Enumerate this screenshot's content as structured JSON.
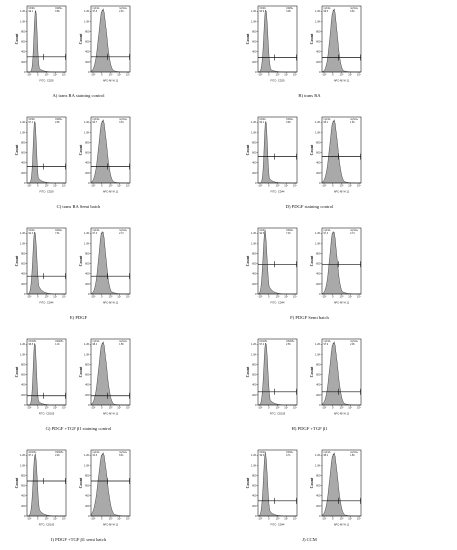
{
  "figure": {
    "panels": [
      {
        "id": "A",
        "caption": "A) trans RA staining control",
        "left": {
          "xlabel": "FITC- CD29",
          "gate_left": "CD29-",
          "val_left": "99.1",
          "gate_right": "CD29+",
          "val_right": "0.86"
        },
        "right": {
          "xlabel": "APC-MYH 11",
          "gate_left": "myh11-",
          "val_left": "97.8",
          "gate_right": "myh11+",
          "val_right": "2.20"
        }
      },
      {
        "id": "B",
        "caption": "B) trans RA",
        "left": {
          "xlabel": "FITC- CD29",
          "gate_left": "CD29-",
          "val_left": "96.9",
          "gate_right": "CD29+",
          "val_right": "3.08"
        },
        "right": {
          "xlabel": "APC-MYH 11",
          "gate_left": "myh11-",
          "val_left": "99.5",
          "gate_right": "myh11+",
          "val_right": "0.46"
        }
      },
      {
        "id": "C",
        "caption": "C) trans RA Semi batch",
        "left": {
          "xlabel": "FITC- CD29",
          "gate_left": "CD29-",
          "val_left": "97.1",
          "gate_right": "CD29+",
          "val_right": "2.86"
        },
        "right": {
          "xlabel": "APC-MYH 11",
          "gate_left": "myh11-",
          "val_left": "96.7",
          "gate_right": "myh11+",
          "val_right": "3.33"
        }
      },
      {
        "id": "D",
        "caption": "D) PDGF staining control",
        "left": {
          "xlabel": "FITC- CD44",
          "gate_left": "CD44-",
          "val_left": "99.1",
          "gate_right": "CD44+",
          "val_right": "0.86"
        },
        "right": {
          "xlabel": "APC-MYH 11",
          "gate_left": "myh11-",
          "val_left": "98.1",
          "gate_right": "myh11+",
          "val_right": "1.92"
        }
      },
      {
        "id": "E",
        "caption": "E) PDGF",
        "left": {
          "xlabel": "FITC- CD44",
          "gate_left": "CD44-",
          "val_left": "92.4",
          "gate_right": "CD44+",
          "val_right": "7.61"
        },
        "right": {
          "xlabel": "APC-MYH 11",
          "gate_left": "myh11-",
          "val_left": "97.3",
          "gate_right": "myh11+",
          "val_right": "2.74"
        }
      },
      {
        "id": "F",
        "caption": "F) PDGF Semi batch",
        "left": {
          "xlabel": "FITC- CD44",
          "gate_left": "CD44-",
          "val_left": "92.5",
          "gate_right": "CD44+",
          "val_right": "7.45"
        },
        "right": {
          "xlabel": "APC-MYH 11",
          "gate_left": "myh11-",
          "val_left": "97.3",
          "gate_right": "myh11+",
          "val_right": "2.74"
        }
      },
      {
        "id": "G",
        "caption": "G) PDGF +TGF β1 staining control",
        "left": {
          "xlabel": "FITC- CD105",
          "gate_left": "CD105-",
          "val_left": "98.8",
          "gate_right": "CD105+",
          "val_right": "1.16"
        },
        "right": {
          "xlabel": "APC-MYH 11",
          "gate_left": "myh11-",
          "val_left": "98.4",
          "gate_right": "myh11+",
          "val_right": "1.58"
        }
      },
      {
        "id": "H",
        "caption": "H) PDGF +TGF β1",
        "left": {
          "xlabel": "FITC- CD105",
          "gate_left": "CD105-",
          "val_left": "97.4",
          "gate_right": "CD105+",
          "val_right": "2.56"
        },
        "right": {
          "xlabel": "APC-MYH 11",
          "gate_left": "myh11-",
          "val_left": "97.9",
          "gate_right": "myh11+",
          "val_right": "2.06"
        }
      },
      {
        "id": "I",
        "caption": "I) PDGF +TGF β1 semi batch",
        "left": {
          "xlabel": "FITC- CD105",
          "gate_left": "CD105-",
          "val_left": "97.1",
          "gate_right": "CD105+",
          "val_right": "2.90"
        },
        "right": {
          "xlabel": "APC-MYH 11",
          "gate_left": "myh11-",
          "val_left": "91.6",
          "gate_right": "myh11+",
          "val_right": "8.41"
        }
      },
      {
        "id": "J",
        "caption": "J) CCM",
        "left": {
          "xlabel": "FITC- CD44",
          "gate_left": "CD44-",
          "val_left": "99.3",
          "gate_right": "CD44+",
          "val_right": "0.71"
        },
        "right": {
          "xlabel": "APC-MYH 11",
          "gate_left": "myh11-",
          "val_left": "98.2",
          "gate_right": "myh11+",
          "val_right": "1.80"
        }
      }
    ],
    "y_axis_label": "Count",
    "y_ticks": [
      "0",
      "200",
      "400",
      "600",
      "800",
      "1.0K",
      "1.2K"
    ],
    "x_ticks": [
      "-10³",
      "0",
      "10³",
      "10⁴",
      "10⁵"
    ],
    "colors": {
      "histogram_fill": "#a9a9a9",
      "outline": "#222222"
    }
  }
}
